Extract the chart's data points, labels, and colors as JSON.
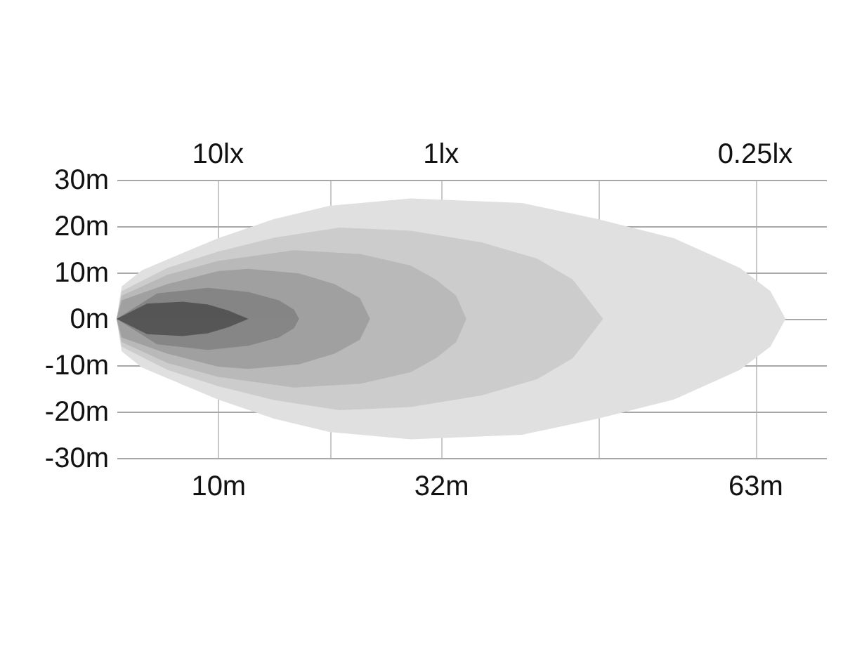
{
  "chart_data": {
    "type": "area",
    "xlim": [
      0,
      70
    ],
    "xticks": [
      {
        "value": 10,
        "label": "10m"
      },
      {
        "value": 21,
        "label": null
      },
      {
        "value": 32,
        "label": "32m"
      },
      {
        "value": 47.5,
        "label": null
      },
      {
        "value": 63,
        "label": "63m"
      }
    ],
    "ylim": [
      -30,
      30
    ],
    "yticks": [
      {
        "value": 30,
        "label": "30m"
      },
      {
        "value": 20,
        "label": "20m"
      },
      {
        "value": 10,
        "label": "10m"
      },
      {
        "value": 0,
        "label": "0m"
      },
      {
        "value": -10,
        "label": "-10m"
      },
      {
        "value": -20,
        "label": "-20m"
      },
      {
        "value": -30,
        "label": "-30m"
      }
    ],
    "grid": true,
    "annotations": [
      "10lx",
      "1lx",
      "0.25lx"
    ],
    "series": [
      {
        "color": "#e0e0e0",
        "x": [
          0,
          0.5,
          2.5,
          5,
          10,
          15.5,
          21,
          29,
          40,
          47.5,
          55,
          61.5,
          64.5,
          66
        ],
        "values": [
          0,
          7,
          10.5,
          12.8,
          17.4,
          21.5,
          24.4,
          26,
          25,
          21.5,
          17.4,
          11,
          6,
          0
        ]
      },
      {
        "color": "#e0e0e0",
        "x": [
          0,
          0.5,
          2.5,
          5,
          10,
          15.5,
          21,
          29,
          40,
          47.5,
          55,
          61.5,
          64.5,
          66
        ],
        "values": [
          0,
          -7,
          -10.5,
          -12.8,
          -17.4,
          -21.5,
          -24.4,
          -26,
          -25,
          -21.5,
          -17.4,
          -11,
          -6,
          0
        ]
      },
      {
        "color": "#cccccc",
        "x": [
          0,
          0.5,
          5,
          10,
          15.5,
          22,
          29,
          36,
          41.5,
          45,
          48
        ],
        "values": [
          0,
          6,
          11,
          14.5,
          17.5,
          19.7,
          19,
          16.5,
          13,
          8.5,
          0
        ]
      },
      {
        "color": "#cccccc",
        "x": [
          0,
          0.5,
          5,
          10,
          15.5,
          22,
          29,
          36,
          41.5,
          45,
          48
        ],
        "values": [
          0,
          -6,
          -11,
          -14.5,
          -17.5,
          -19.7,
          -19,
          -16.5,
          -13,
          -8.5,
          0
        ]
      },
      {
        "color": "#b9b9b9",
        "x": [
          0,
          0.5,
          5,
          10,
          17.5,
          24,
          29,
          31.5,
          33.5,
          34.5
        ],
        "values": [
          0,
          5,
          9.5,
          12.5,
          14.8,
          14,
          11.5,
          8.5,
          5,
          0
        ]
      },
      {
        "color": "#b9b9b9",
        "x": [
          0,
          0.5,
          5,
          10,
          17.5,
          24,
          29,
          31.5,
          33.5,
          34.5
        ],
        "values": [
          0,
          -5,
          -9.5,
          -12.5,
          -14.8,
          -14,
          -11.5,
          -8.5,
          -5,
          0
        ]
      },
      {
        "color": "#a0a0a0",
        "x": [
          0,
          0.5,
          5,
          10,
          13,
          18,
          21.5,
          24,
          25
        ],
        "values": [
          0,
          4,
          7.5,
          10.3,
          10.8,
          9.8,
          7.5,
          4.5,
          0
        ]
      },
      {
        "color": "#a0a0a0",
        "x": [
          0,
          0.5,
          5,
          10,
          13,
          18,
          21.5,
          24,
          25
        ],
        "values": [
          0,
          -4,
          -7.5,
          -10.3,
          -10.8,
          -9.8,
          -7.5,
          -4.5,
          0
        ]
      },
      {
        "color": "#858585",
        "x": [
          0,
          4,
          9,
          13,
          16,
          17.5,
          18
        ],
        "values": [
          0,
          5.5,
          6.7,
          5.8,
          4,
          2,
          0
        ]
      },
      {
        "color": "#868686",
        "x": [
          0,
          4,
          9,
          13,
          16,
          17.5,
          18
        ],
        "values": [
          0,
          -5.5,
          -6.7,
          -5.8,
          -4,
          -2,
          0
        ]
      },
      {
        "color": "#555555",
        "x": [
          0,
          3,
          6.5,
          9,
          11,
          13
        ],
        "values": [
          0,
          3.3,
          3.7,
          3.1,
          1.8,
          0
        ]
      },
      {
        "color": "#565656",
        "x": [
          0,
          3,
          6.5,
          9,
          11,
          13
        ],
        "values": [
          0,
          -3.3,
          -3.7,
          -3.1,
          -1.8,
          0
        ]
      }
    ]
  }
}
